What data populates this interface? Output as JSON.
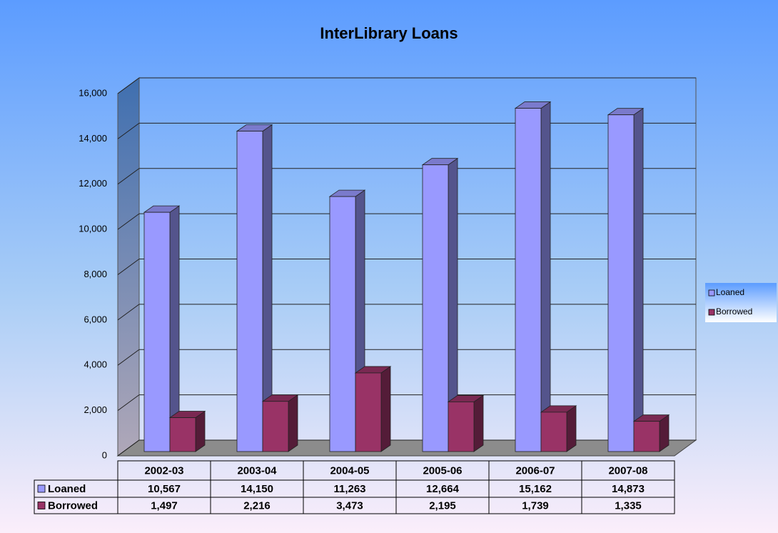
{
  "chart_data": {
    "type": "bar3d",
    "title": "InterLibrary Loans",
    "categories": [
      "2002-03",
      "2003-04",
      "2004-05",
      "2005-06",
      "2006-07",
      "2007-08"
    ],
    "series": [
      {
        "name": "Loaned",
        "color": "#9999ff",
        "values": [
          10567,
          14150,
          11263,
          12664,
          15162,
          14873
        ],
        "value_labels": [
          "10,567",
          "14,150",
          "11,263",
          "12,664",
          "15,162",
          "14,873"
        ]
      },
      {
        "name": "Borrowed",
        "color": "#993366",
        "values": [
          1497,
          2216,
          3473,
          2195,
          1739,
          1335
        ],
        "value_labels": [
          "1,497",
          "2,216",
          "3,473",
          "2,195",
          "1,739",
          "1,335"
        ]
      }
    ],
    "ylim": [
      0,
      16000
    ],
    "yticks": [
      0,
      {
        "value": 2000,
        "label": "2,000"
      },
      {
        "value": 4000,
        "label": "4,000"
      },
      {
        "value": 6000,
        "label": "6,000"
      },
      {
        "value": 8000,
        "label": "8,000"
      },
      {
        "value": 10000,
        "label": "10,000"
      },
      {
        "value": 12000,
        "label": "12,000"
      },
      {
        "value": 14000,
        "label": "14,000"
      },
      {
        "value": 16000,
        "label": "16,000"
      }
    ],
    "grid": true,
    "legend": "right"
  }
}
